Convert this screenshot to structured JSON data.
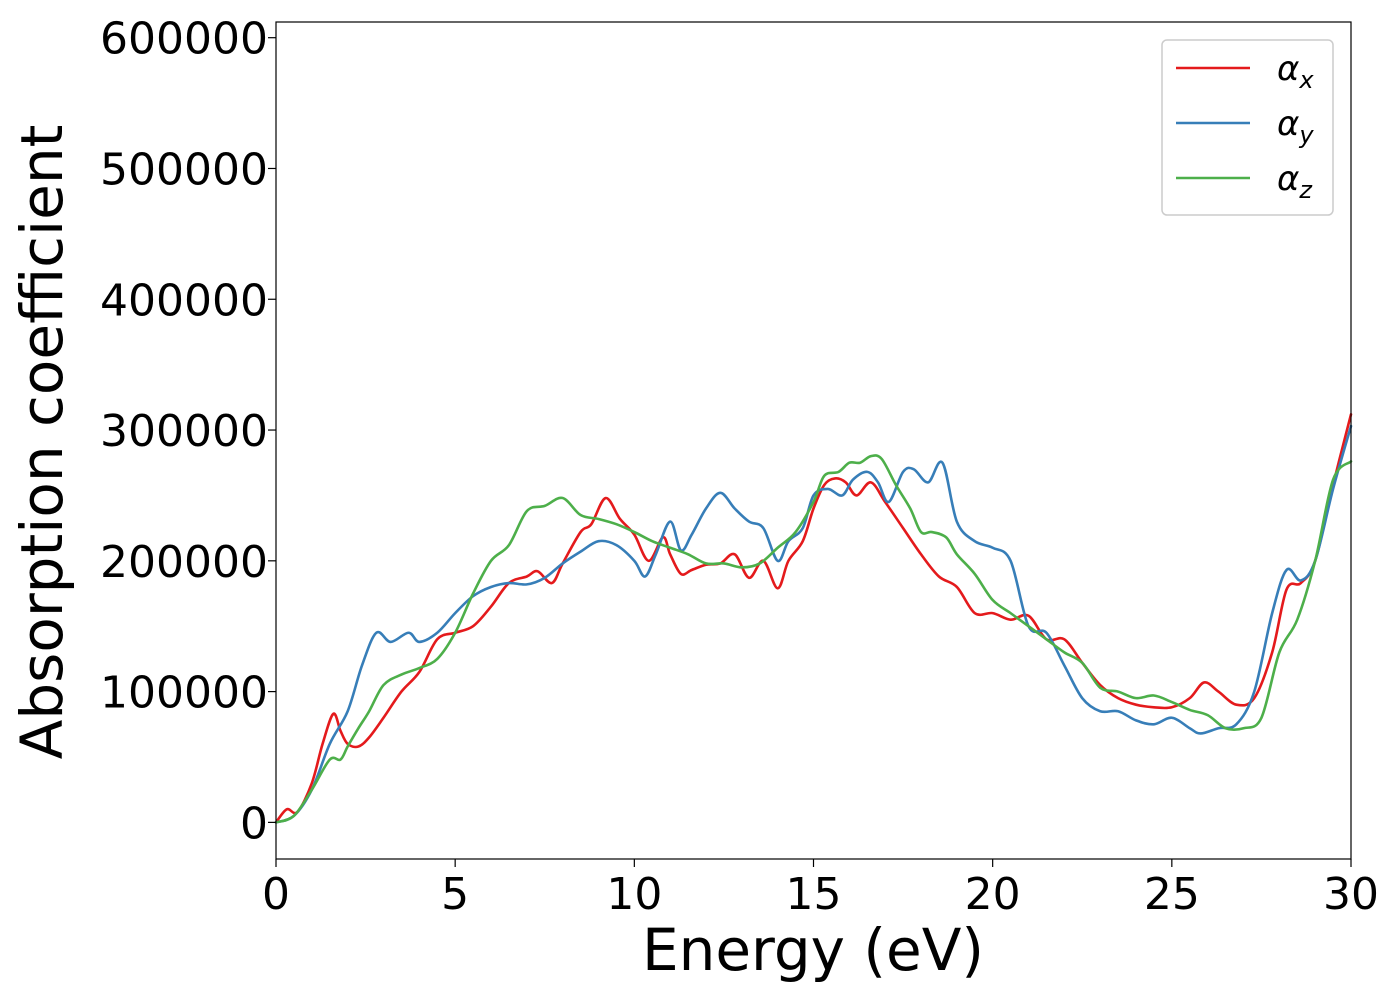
{
  "chart_data": {
    "type": "line",
    "title": "",
    "xlabel": "Energy (eV)",
    "ylabel": "Absorption coefficient",
    "xlim": [
      0,
      30
    ],
    "ylim": [
      -28000,
      612000
    ],
    "xticks": [
      0,
      5,
      10,
      15,
      20,
      25,
      30
    ],
    "yticks": [
      0,
      100000,
      200000,
      300000,
      400000,
      500000,
      600000
    ],
    "xtick_labels": [
      "0",
      "5",
      "10",
      "15",
      "20",
      "25",
      "30"
    ],
    "ytick_labels": [
      "0",
      "100000",
      "200000",
      "300000",
      "400000",
      "500000",
      "600000"
    ],
    "grid": false,
    "legend_position": "top-right",
    "series": [
      {
        "name": "α_x",
        "label_main": "α",
        "label_sub": "x",
        "color": "#e41a1c",
        "x": [
          0,
          0.3,
          0.6,
          1,
          1.3,
          1.6,
          1.8,
          2,
          2.3,
          2.6,
          3,
          3.5,
          4,
          4.5,
          5,
          5.5,
          6,
          6.5,
          7,
          7.3,
          7.7,
          8,
          8.5,
          8.8,
          9.2,
          9.6,
          10,
          10.4,
          10.8,
          11,
          11.3,
          11.6,
          12,
          12.4,
          12.8,
          13.2,
          13.6,
          14,
          14.3,
          14.7,
          15,
          15.3,
          15.6,
          15.9,
          16.2,
          16.6,
          17,
          17.5,
          18,
          18.5,
          19,
          19.5,
          20,
          20.5,
          21,
          21.5,
          22,
          22.5,
          23,
          23.5,
          24,
          24.5,
          25,
          25.5,
          25.9,
          26.3,
          26.8,
          27.3,
          27.8,
          28.2,
          28.6,
          29,
          29.5,
          30
        ],
        "y": [
          0,
          10000,
          8000,
          30000,
          60000,
          83000,
          70000,
          60000,
          58000,
          65000,
          80000,
          100000,
          115000,
          140000,
          145000,
          150000,
          165000,
          183000,
          188000,
          192000,
          183000,
          198000,
          222000,
          228000,
          248000,
          232000,
          220000,
          200000,
          218000,
          205000,
          190000,
          193000,
          197000,
          198000,
          205000,
          187000,
          200000,
          179000,
          200000,
          215000,
          240000,
          258000,
          263000,
          260000,
          250000,
          260000,
          245000,
          225000,
          205000,
          188000,
          180000,
          160000,
          160000,
          155000,
          158000,
          140000,
          140000,
          122000,
          105000,
          95000,
          90000,
          88000,
          88000,
          95000,
          107000,
          100000,
          90000,
          95000,
          130000,
          178000,
          183000,
          200000,
          258000,
          312000
        ]
      },
      {
        "name": "α_y",
        "label_main": "α",
        "label_sub": "y",
        "color": "#377eb8",
        "x": [
          0,
          0.5,
          1,
          1.5,
          2,
          2.4,
          2.8,
          3.2,
          3.7,
          4,
          4.5,
          5,
          5.5,
          6,
          6.5,
          7,
          7.5,
          8,
          8.5,
          9,
          9.5,
          10,
          10.3,
          10.6,
          11,
          11.3,
          11.6,
          12,
          12.4,
          12.8,
          13.2,
          13.6,
          14,
          14.3,
          14.7,
          15,
          15.4,
          15.8,
          16.1,
          16.5,
          16.8,
          17.1,
          17.5,
          17.8,
          18.2,
          18.6,
          19,
          19.5,
          20,
          20.5,
          21,
          21.5,
          22,
          22.5,
          23,
          23.5,
          24,
          24.5,
          25,
          25.5,
          25.8,
          26.3,
          26.8,
          27.3,
          27.8,
          28.2,
          28.6,
          29,
          29.5,
          30
        ],
        "y": [
          0,
          5000,
          25000,
          60000,
          85000,
          120000,
          145000,
          138000,
          145000,
          138000,
          145000,
          160000,
          173000,
          180000,
          183000,
          182000,
          187000,
          198000,
          207000,
          215000,
          212000,
          200000,
          188000,
          205000,
          230000,
          208000,
          220000,
          240000,
          252000,
          240000,
          230000,
          225000,
          200000,
          215000,
          225000,
          250000,
          255000,
          250000,
          262000,
          268000,
          260000,
          245000,
          268000,
          270000,
          260000,
          275000,
          230000,
          215000,
          210000,
          200000,
          150000,
          145000,
          120000,
          95000,
          85000,
          85000,
          78000,
          75000,
          80000,
          72000,
          68000,
          72000,
          75000,
          100000,
          160000,
          193000,
          185000,
          200000,
          255000,
          303000
        ]
      },
      {
        "name": "α_z",
        "label_main": "α",
        "label_sub": "z",
        "color": "#4daf4a",
        "x": [
          0,
          0.5,
          1,
          1.5,
          1.8,
          2,
          2.3,
          2.6,
          3,
          3.5,
          4,
          4.5,
          5,
          5.5,
          6,
          6.5,
          7,
          7.5,
          8,
          8.5,
          9,
          9.5,
          10,
          10.5,
          11,
          11.5,
          12,
          12.5,
          13,
          13.5,
          14,
          14.5,
          15,
          15.3,
          15.7,
          16,
          16.3,
          16.6,
          16.9,
          17.3,
          17.7,
          18,
          18.3,
          18.7,
          19,
          19.5,
          20,
          20.5,
          21,
          21.5,
          22,
          22.5,
          23,
          23.5,
          24,
          24.5,
          25,
          25.5,
          26,
          26.5,
          27,
          27.5,
          28,
          28.5,
          29,
          29.5,
          30
        ],
        "y": [
          0,
          5000,
          25000,
          48000,
          48000,
          58000,
          72000,
          85000,
          105000,
          113000,
          118000,
          125000,
          145000,
          175000,
          200000,
          212000,
          238000,
          242000,
          248000,
          235000,
          232000,
          228000,
          222000,
          215000,
          210000,
          205000,
          198000,
          198000,
          195000,
          198000,
          210000,
          222000,
          245000,
          265000,
          268000,
          275000,
          275000,
          280000,
          278000,
          258000,
          240000,
          222000,
          222000,
          218000,
          205000,
          190000,
          170000,
          160000,
          150000,
          140000,
          130000,
          122000,
          103000,
          100000,
          95000,
          97000,
          92000,
          86000,
          82000,
          72000,
          72000,
          80000,
          130000,
          155000,
          200000,
          262000,
          276000
        ]
      }
    ]
  }
}
